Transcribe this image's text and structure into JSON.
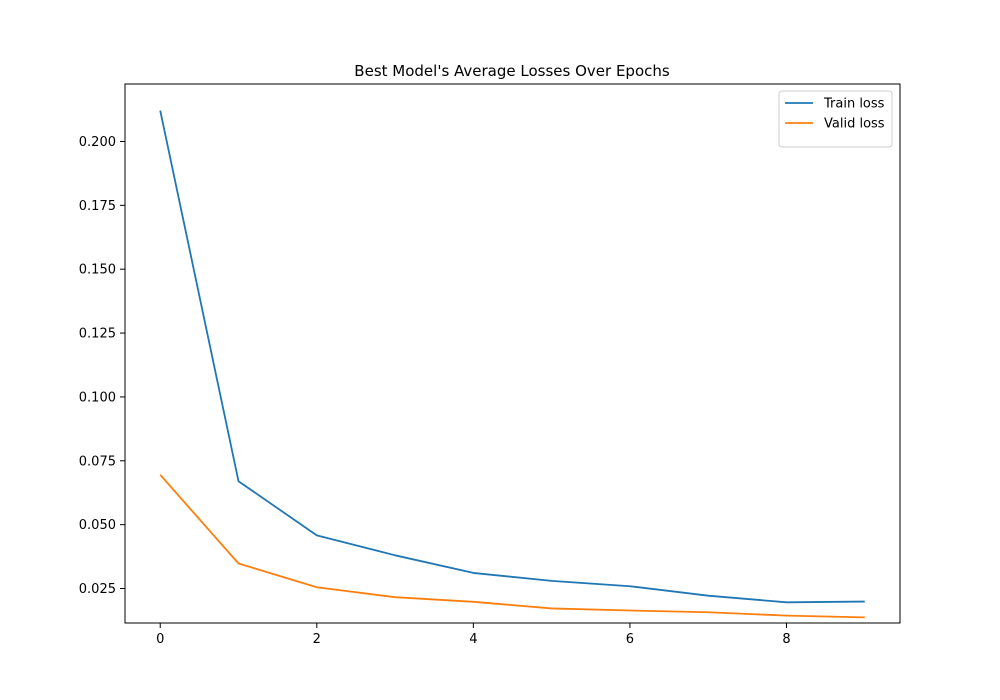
{
  "chart_data": {
    "type": "line",
    "title": "Best Model's Average Losses Over Epochs",
    "xlabel": "",
    "ylabel": "",
    "x": [
      0,
      1,
      2,
      3,
      4,
      5,
      6,
      7,
      8,
      9
    ],
    "xlim": [
      -0.45,
      9.45
    ],
    "ylim": [
      0.0115,
      0.2225
    ],
    "xticks": [
      0,
      2,
      4,
      6,
      8
    ],
    "xtick_labels": [
      "0",
      "2",
      "4",
      "6",
      "8"
    ],
    "yticks": [
      0.025,
      0.05,
      0.075,
      0.1,
      0.125,
      0.15,
      0.175,
      0.2
    ],
    "ytick_labels": [
      "0.025",
      "0.050",
      "0.075",
      "0.100",
      "0.125",
      "0.150",
      "0.175",
      "0.200"
    ],
    "grid": false,
    "legend_position": "top-right",
    "series": [
      {
        "name": "Train loss",
        "color": "#1f77b4",
        "values": [
          0.2121,
          0.067,
          0.0458,
          0.038,
          0.0311,
          0.028,
          0.0259,
          0.0222,
          0.0196,
          0.0199
        ]
      },
      {
        "name": "Valid loss",
        "color": "#ff7f0e",
        "values": [
          0.0695,
          0.0348,
          0.0255,
          0.0216,
          0.0198,
          0.0172,
          0.0164,
          0.0157,
          0.0144,
          0.0137
        ]
      }
    ]
  }
}
